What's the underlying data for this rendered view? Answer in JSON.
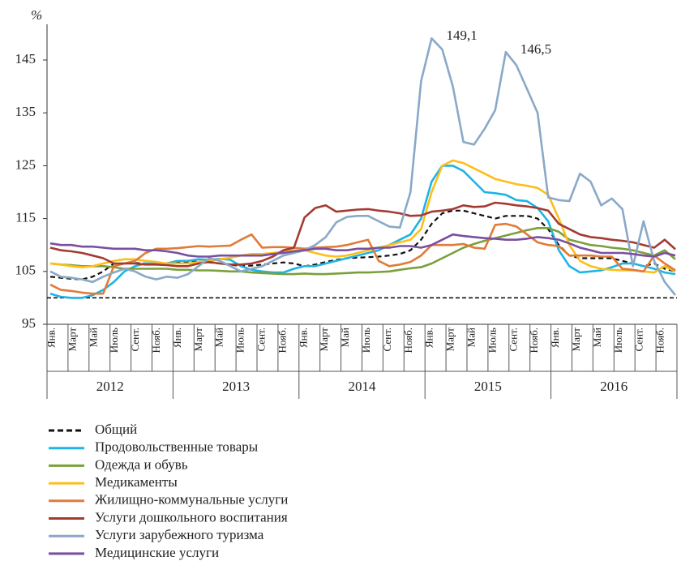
{
  "chart_data": {
    "type": "line",
    "y_unit": "%",
    "ylim": [
      95,
      150
    ],
    "yticks": [
      95,
      105,
      115,
      125,
      135,
      145
    ],
    "reference_line": 100,
    "categories": [
      "Янв.",
      null,
      "Март",
      null,
      "Май",
      null,
      "Июль",
      null,
      "Сент.",
      null,
      "Нояб.",
      null,
      "Янв.",
      null,
      "Март",
      null,
      "Май",
      null,
      "Июль",
      null,
      "Сент.",
      null,
      "Нояб.",
      null,
      "Янв.",
      null,
      "Март",
      null,
      "Май",
      null,
      "Июль",
      null,
      "Сент.",
      null,
      "Нояб.",
      null,
      "Янв.",
      null,
      "Март",
      null,
      "Май",
      null,
      "Июль",
      null,
      "Сент.",
      null,
      "Нояб.",
      null,
      "Янв.",
      null,
      "Март",
      null,
      "Май",
      null,
      "Июль",
      null,
      "Сент.",
      null,
      "Нояб.",
      null
    ],
    "years": [
      "2012",
      "2013",
      "2014",
      "2015",
      "2016"
    ],
    "series": [
      {
        "name": "Общий",
        "color": "#111111",
        "dashed": true,
        "values": [
          104,
          103.8,
          103.6,
          103.5,
          104,
          105,
          106.5,
          106.5,
          106.6,
          106.5,
          106.5,
          106.6,
          106.7,
          106.8,
          106.9,
          106.7,
          106.5,
          106.3,
          106,
          106.1,
          106.3,
          106.5,
          106.7,
          106.5,
          106,
          106.3,
          106.8,
          107.2,
          107.5,
          107.6,
          107.7,
          107.8,
          108,
          108.3,
          109,
          111,
          114,
          116,
          116.5,
          116.5,
          116,
          115.5,
          115,
          115.5,
          115.5,
          115.5,
          115,
          113,
          110,
          108,
          107.5,
          107.5,
          107.5,
          107.5,
          107,
          106.5,
          106,
          106.5,
          105.5,
          105
        ]
      },
      {
        "name": "Продовольственные товары",
        "color": "#1eb4e6",
        "values": [
          100.8,
          100.2,
          100,
          100,
          100.5,
          101.5,
          103,
          105,
          106,
          106.5,
          106.5,
          106.5,
          107,
          107,
          107.3,
          107.2,
          107.4,
          107.2,
          106,
          105.3,
          105,
          104.8,
          104.8,
          105.5,
          106,
          106,
          106.5,
          107,
          107.5,
          108,
          108.5,
          109,
          110,
          111,
          112,
          115,
          122,
          125,
          125,
          124,
          122,
          120,
          119.8,
          119.5,
          118.5,
          118.3,
          117,
          114.5,
          109,
          106,
          104.8,
          105,
          105.2,
          105.8,
          106.5,
          106.5,
          106,
          105.5,
          104.8,
          104.5
        ]
      },
      {
        "name": "Одежда и обувь",
        "color": "#7aa03c",
        "values": [
          106.5,
          106.3,
          106.2,
          106,
          106,
          106,
          105.8,
          105.5,
          105.5,
          105.5,
          105.5,
          105.5,
          105.3,
          105.3,
          105.2,
          105.2,
          105.1,
          105,
          105,
          104.8,
          104.7,
          104.6,
          104.5,
          104.5,
          104.6,
          104.5,
          104.5,
          104.6,
          104.7,
          104.8,
          104.8,
          104.9,
          105,
          105.3,
          105.6,
          105.8,
          106.5,
          107.5,
          108.5,
          109.5,
          110.2,
          110.8,
          111.3,
          111.8,
          112.3,
          112.8,
          113.2,
          113.2,
          112.5,
          111,
          110.5,
          110,
          109.8,
          109.5,
          109.3,
          109,
          108.5,
          108,
          109,
          107.3
        ]
      },
      {
        "name": "Медикаменты",
        "color": "#fcbf1a",
        "values": [
          106.5,
          106.3,
          106,
          105.8,
          106,
          106.5,
          107,
          107.3,
          107.3,
          107,
          106.8,
          106.5,
          106.5,
          106.5,
          106.8,
          107,
          107.3,
          107.6,
          108,
          108.3,
          108.3,
          108.5,
          108.7,
          109,
          109,
          108.5,
          108,
          107.8,
          108,
          108.5,
          109,
          109.5,
          110,
          110.5,
          111,
          113,
          120,
          125,
          126,
          125.5,
          124.5,
          123.5,
          122.5,
          122,
          121.5,
          121.2,
          120.8,
          119.5,
          115,
          110,
          107,
          106,
          105.5,
          105.3,
          105.2,
          105.2,
          105,
          104.8,
          106,
          105
        ]
      },
      {
        "name": "Жилищно-коммунальные услуги",
        "color": "#e07b39",
        "values": [
          102.5,
          101.5,
          101.3,
          101,
          100.8,
          100.8,
          106,
          106.5,
          107,
          108.5,
          109.3,
          109.3,
          109.4,
          109.6,
          109.8,
          109.7,
          109.8,
          109.9,
          111,
          112,
          109.5,
          109.6,
          109.6,
          109.5,
          109.3,
          109.5,
          109.6,
          109.7,
          110,
          110.5,
          111,
          107,
          106,
          106.3,
          106.8,
          108,
          110,
          110,
          110,
          110.2,
          109.5,
          109.3,
          113.8,
          114,
          113.5,
          112,
          110.5,
          110,
          109.8,
          108,
          108,
          108,
          107.8,
          107.8,
          105.5,
          105.3,
          105,
          108,
          106.5,
          105.2
        ]
      },
      {
        "name": "Услуги дошкольного воспитания",
        "color": "#a33b33",
        "values": [
          109.5,
          109,
          108.8,
          108.5,
          108,
          107.5,
          106.5,
          106.5,
          106.5,
          106.3,
          106.3,
          106.2,
          106,
          106,
          106.5,
          106.8,
          106.5,
          106.3,
          106.3,
          106.5,
          107,
          107.8,
          109,
          109.5,
          115.2,
          117,
          117.5,
          116.3,
          116.5,
          116.7,
          116.8,
          116.5,
          116.3,
          116,
          115.5,
          115.6,
          116.3,
          116.5,
          116.8,
          117.5,
          117.2,
          117.3,
          118,
          117.8,
          117.5,
          117.3,
          117,
          116.5,
          114,
          113,
          112,
          111.5,
          111.3,
          111,
          110.8,
          110.5,
          110,
          109.5,
          111,
          109.2
        ]
      },
      {
        "name": "Услуги зарубежного туризма",
        "color": "#8aa8c8",
        "values": [
          105,
          104,
          103.8,
          103.5,
          103,
          104,
          104.8,
          105.5,
          105,
          104,
          103.5,
          104,
          103.8,
          104.5,
          106,
          107.5,
          107,
          106,
          105,
          105.5,
          106,
          107,
          108,
          108.5,
          109,
          110,
          111.5,
          114.3,
          115.3,
          115.5,
          115.5,
          114.5,
          113.5,
          113.3,
          120,
          141,
          149.1,
          147,
          140,
          129.5,
          129,
          132,
          135.5,
          146.5,
          144,
          139.5,
          135,
          119,
          118.5,
          118.3,
          123.5,
          122,
          117.5,
          118.8,
          116.8,
          106,
          114.5,
          107,
          103,
          100.5
        ],
        "value_labels": [
          null,
          null,
          null,
          null,
          null,
          null,
          null,
          null,
          null,
          null,
          null,
          null,
          null,
          null,
          null,
          null,
          null,
          null,
          null,
          null,
          null,
          null,
          null,
          null,
          null,
          null,
          null,
          null,
          null,
          null,
          null,
          null,
          null,
          null,
          null,
          null,
          "149,1",
          null,
          null,
          null,
          null,
          null,
          null,
          "146,5",
          null,
          null,
          null,
          null,
          null,
          null,
          null,
          null,
          null,
          null,
          null,
          null,
          null,
          null,
          null,
          null
        ]
      },
      {
        "name": "Медицинские услуги",
        "color": "#7a4fa0",
        "values": [
          110.3,
          110,
          110,
          109.7,
          109.7,
          109.5,
          109.3,
          109.3,
          109.3,
          109,
          109,
          108.8,
          108.5,
          108,
          107.8,
          107.8,
          108,
          108,
          108,
          108,
          108,
          108.3,
          108.5,
          108.8,
          109,
          109.3,
          109.3,
          109,
          109,
          109.3,
          109.3,
          109.5,
          109.5,
          109.8,
          109.8,
          109.5,
          110,
          111,
          112,
          111.7,
          111.5,
          111.3,
          111.2,
          111,
          111,
          111.2,
          111.5,
          111.3,
          111,
          110.3,
          109.5,
          109,
          108.5,
          108.5,
          108.5,
          108.3,
          108,
          107.8,
          108.5,
          108
        ]
      }
    ]
  }
}
